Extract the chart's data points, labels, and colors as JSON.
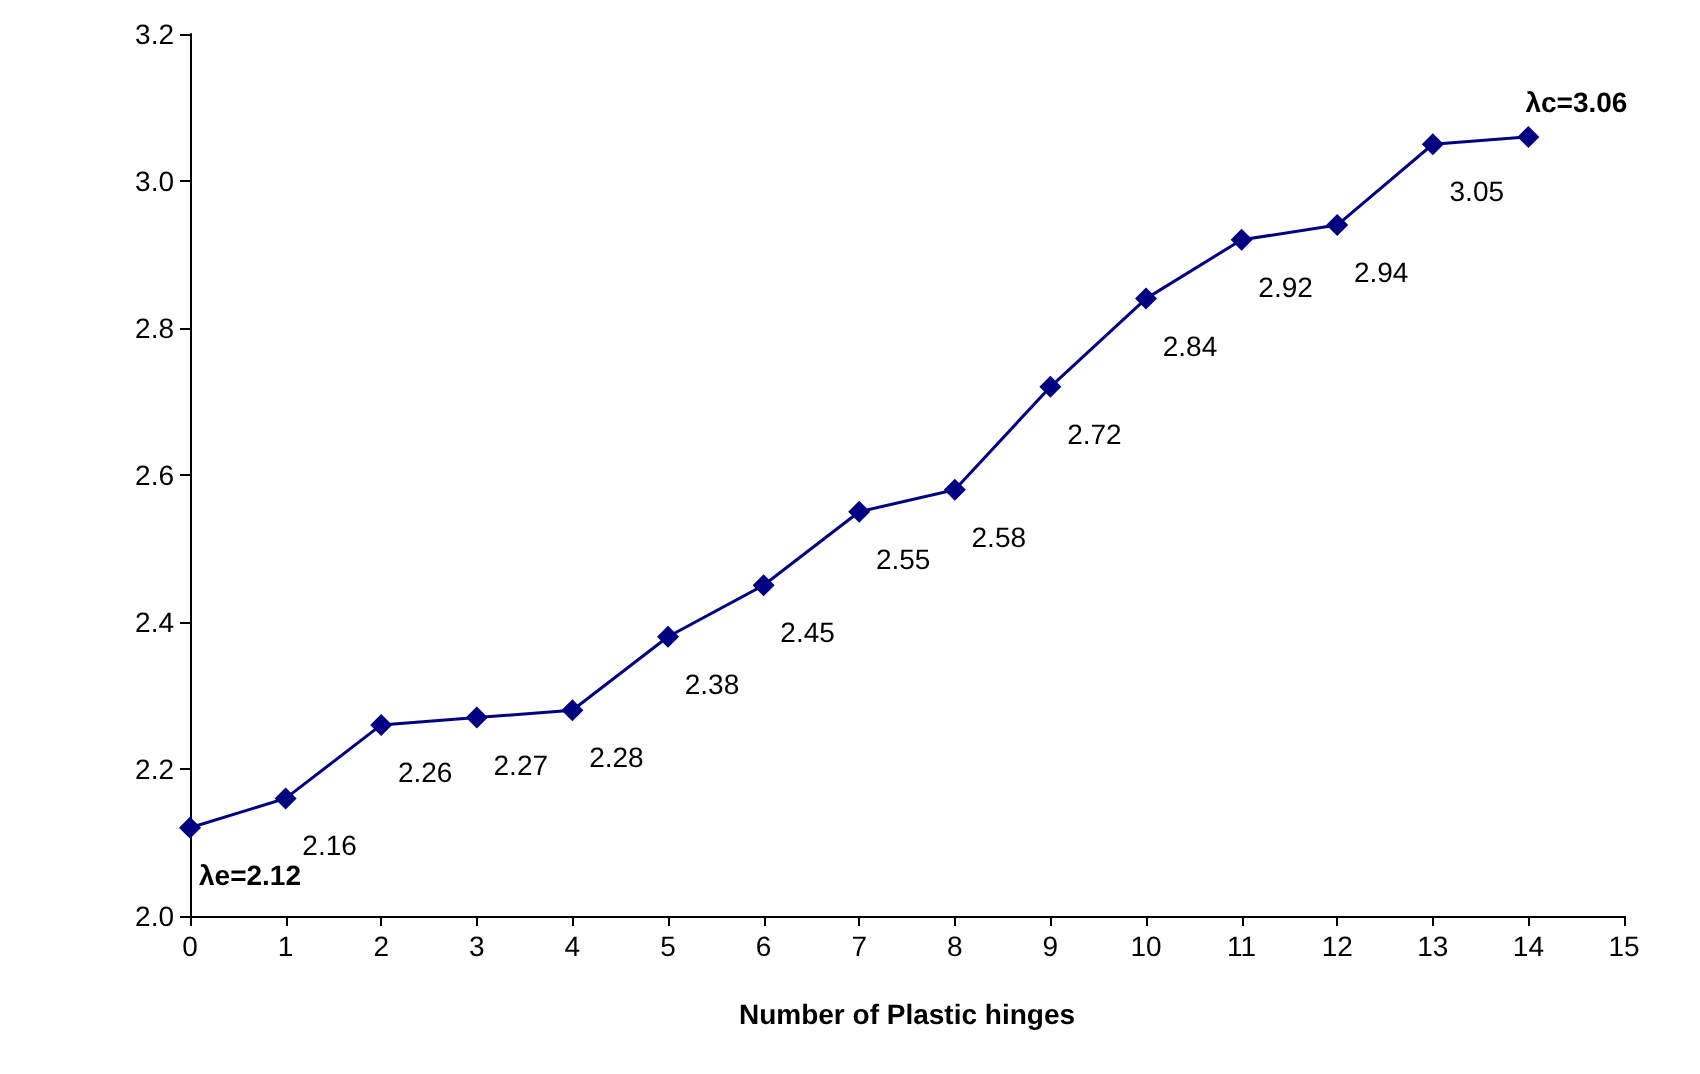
{
  "chart_data": {
    "type": "line",
    "xlabel": "Number of Plastic hinges",
    "x": [
      0,
      1,
      2,
      3,
      4,
      5,
      6,
      7,
      8,
      9,
      10,
      11,
      12,
      13,
      14
    ],
    "series": [
      {
        "color": "#000080",
        "values": [
          2.12,
          2.16,
          2.26,
          2.27,
          2.28,
          2.38,
          2.45,
          2.55,
          2.58,
          2.72,
          2.84,
          2.92,
          2.94,
          3.05,
          3.06
        ]
      }
    ],
    "value_labels": [
      "λe=2.12",
      "2.16",
      "2.26",
      "2.27",
      "2.28",
      "2.38",
      "2.45",
      "2.55",
      "2.58",
      "2.72",
      "2.84",
      "2.92",
      "2.94",
      "3.05",
      "λc=3.06"
    ],
    "xlim": [
      0,
      15
    ],
    "xticks": [
      0,
      1,
      2,
      3,
      4,
      5,
      6,
      7,
      8,
      9,
      10,
      11,
      12,
      13,
      14,
      15
    ],
    "ylim": [
      2.0,
      3.2
    ],
    "yticks": [
      {
        "value": 2.0,
        "label": "2.0"
      },
      {
        "value": 2.2,
        "label": "2.2"
      },
      {
        "value": 2.4,
        "label": "2.4"
      },
      {
        "value": 2.6,
        "label": "2.6"
      },
      {
        "value": 2.8,
        "label": "2.8"
      },
      {
        "value": 3.0,
        "label": "3.0"
      },
      {
        "value": 3.2,
        "label": "3.2"
      }
    ],
    "grid": false,
    "marker": "diamond",
    "line_style": "solid"
  }
}
